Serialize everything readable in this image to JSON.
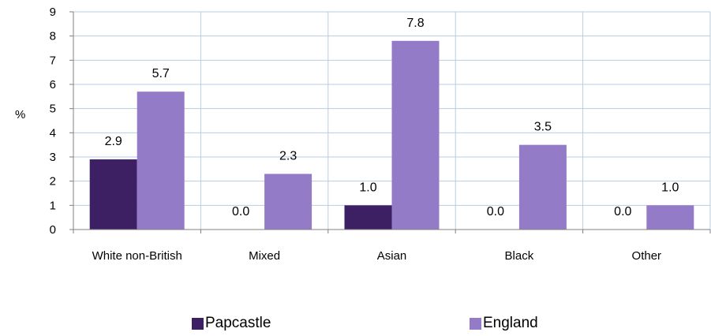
{
  "chart_data": {
    "type": "bar",
    "ylabel": "%",
    "ylim": [
      0,
      9
    ],
    "yticks": [
      0,
      1,
      2,
      3,
      4,
      5,
      6,
      7,
      8,
      9
    ],
    "categories": [
      "White non-British",
      "Mixed",
      "Asian",
      "Black",
      "Other"
    ],
    "series": [
      {
        "name": "Papcastle",
        "color": "#3d1f63",
        "values": [
          2.9,
          0.0,
          1.0,
          0.0,
          0.0
        ],
        "labels": [
          "2.9",
          "0.0",
          "1.0",
          "0.0",
          "0.0"
        ]
      },
      {
        "name": "England",
        "color": "#947bc8",
        "values": [
          5.7,
          2.3,
          7.8,
          3.5,
          1.0
        ],
        "labels": [
          "5.7",
          "2.3",
          "7.8",
          "3.5",
          "1.0"
        ]
      }
    ],
    "grid": true,
    "legend_position": "bottom"
  }
}
